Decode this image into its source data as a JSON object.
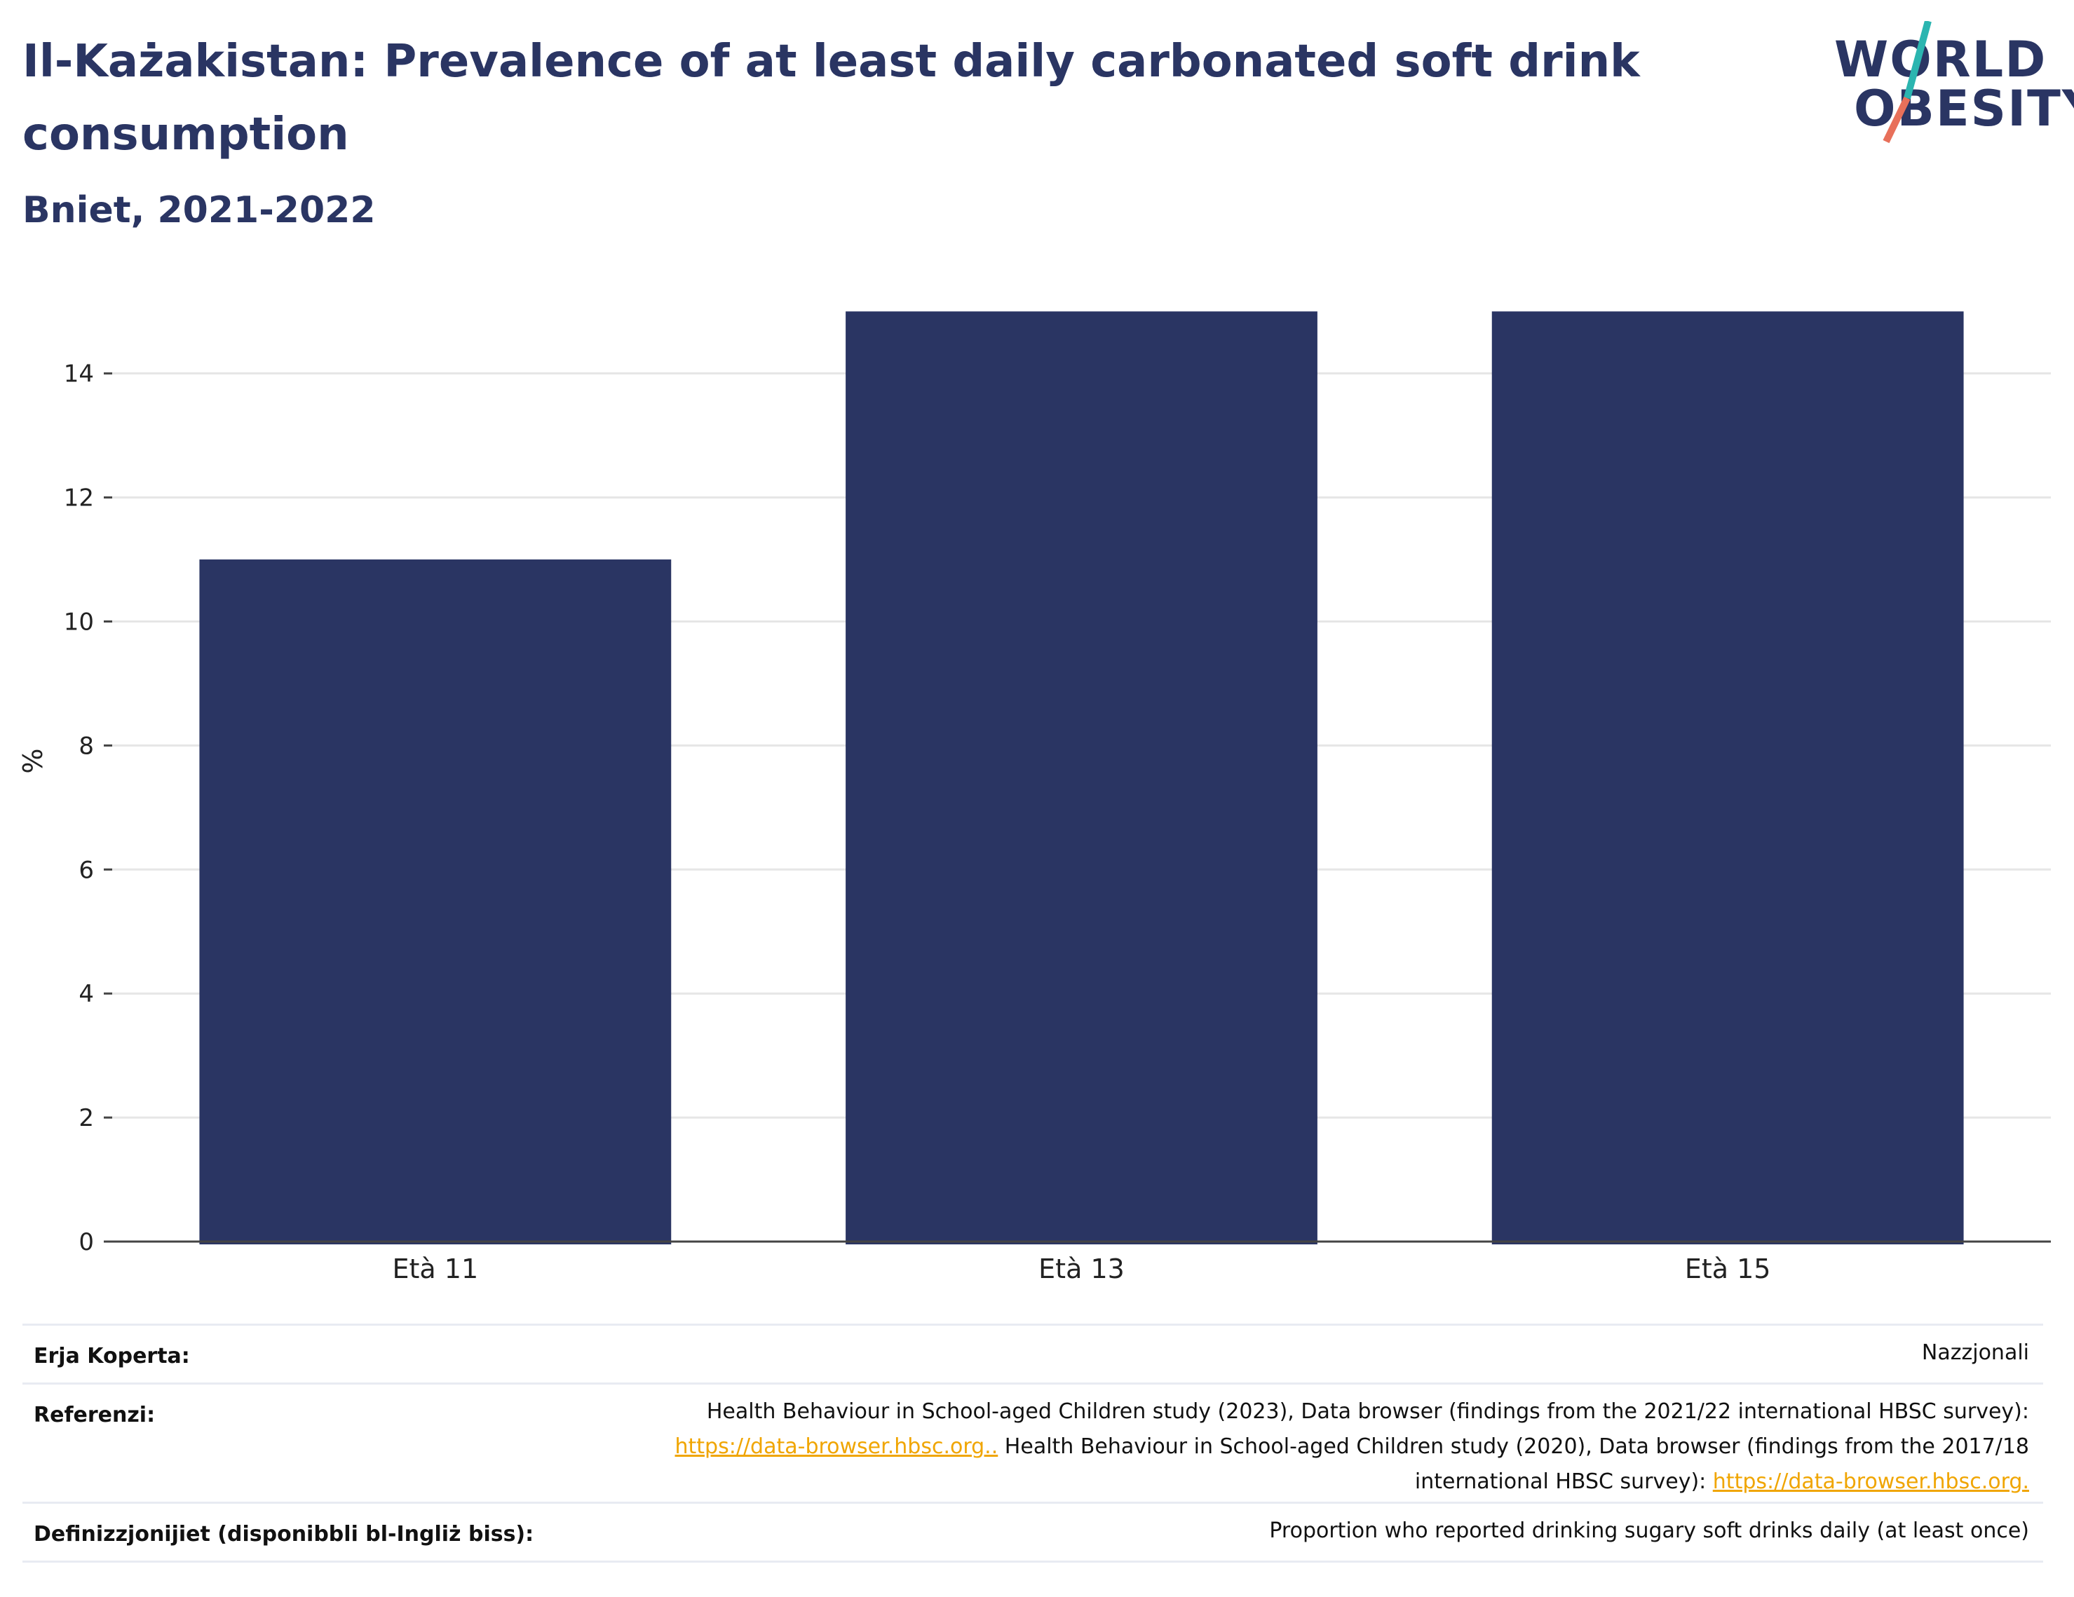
{
  "header": {
    "title": "Il-Każakistan: Prevalence of at least daily carbonated soft drink consumption",
    "subtitle": "Bniet, 2021-2022"
  },
  "logo": {
    "line1": "WORLD",
    "line2": "OBESITY",
    "colors": {
      "text": "#2a3563",
      "slash_top": "#2bb5b0",
      "slash_bottom": "#e8705a"
    }
  },
  "chart_data": {
    "type": "bar",
    "categories": [
      "Età 11",
      "Età 13",
      "Età 15"
    ],
    "values": [
      11.0,
      15.0,
      15.0
    ],
    "ylabel": "%",
    "xlabel": "",
    "ylim": [
      0,
      15.5
    ],
    "yticks": [
      0,
      2,
      4,
      6,
      8,
      10,
      12,
      14
    ],
    "grid": true,
    "bar_color": "#2a3563"
  },
  "meta": {
    "coverage_label": "Erja Koperta:",
    "coverage_value": "Nazzjonali",
    "references_label": "Referenzi:",
    "references_line1": "Health Behaviour in School-aged Children study (2023), Data browser (findings from the 2021/22 international HBSC survey):",
    "references_link1": "https://data-browser.hbsc.org..",
    "references_line2_rest": " Health Behaviour in School-aged Children study (2020), Data browser (findings from the 2017/18",
    "references_line3": "international HBSC survey): ",
    "references_link2": "https://data-browser.hbsc.org.",
    "definitions_label": "Definizzjonijiet (disponibbli bl-Ingliż biss):",
    "definitions_value": "Proportion who reported drinking sugary soft drinks daily (at least once)"
  }
}
